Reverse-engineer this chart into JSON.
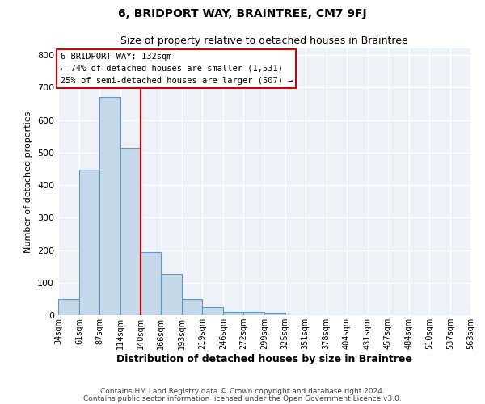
{
  "title": "6, BRIDPORT WAY, BRAINTREE, CM7 9FJ",
  "subtitle": "Size of property relative to detached houses in Braintree",
  "xlabel": "Distribution of detached houses by size in Braintree",
  "ylabel": "Number of detached properties",
  "bar_values": [
    50,
    447,
    670,
    515,
    195,
    127,
    50,
    25,
    10,
    10,
    8,
    0,
    0,
    0,
    0,
    0,
    0,
    0,
    0,
    0
  ],
  "bin_edges": [
    34,
    61,
    87,
    114,
    140,
    166,
    193,
    219,
    246,
    272,
    299,
    325,
    351,
    378,
    404,
    431,
    457,
    484,
    510,
    537,
    563
  ],
  "tick_labels": [
    "34sqm",
    "61sqm",
    "87sqm",
    "114sqm",
    "140sqm",
    "166sqm",
    "193sqm",
    "219sqm",
    "246sqm",
    "272sqm",
    "299sqm",
    "325sqm",
    "351sqm",
    "378sqm",
    "404sqm",
    "431sqm",
    "457sqm",
    "484sqm",
    "510sqm",
    "537sqm",
    "563sqm"
  ],
  "vline_x": 140,
  "vline_color": "#cc0000",
  "bar_color": "#c5d8ea",
  "bar_edge_color": "#5b9ac9",
  "ylim": [
    0,
    820
  ],
  "yticks": [
    0,
    100,
    200,
    300,
    400,
    500,
    600,
    700,
    800
  ],
  "annotation_title": "6 BRIDPORT WAY: 132sqm",
  "annotation_line1": "← 74% of detached houses are smaller (1,531)",
  "annotation_line2": "25% of semi-detached houses are larger (507) →",
  "annotation_box_color": "#cc0000",
  "background_color": "#eef2f8",
  "footer_line1": "Contains HM Land Registry data © Crown copyright and database right 2024.",
  "footer_line2": "Contains public sector information licensed under the Open Government Licence v3.0.",
  "title_fontsize": 10,
  "subtitle_fontsize": 9,
  "ylabel_fontsize": 8,
  "xlabel_fontsize": 9,
  "annotation_fontsize": 7.5,
  "footer_fontsize": 6.5,
  "ytick_fontsize": 8,
  "xtick_fontsize": 7
}
